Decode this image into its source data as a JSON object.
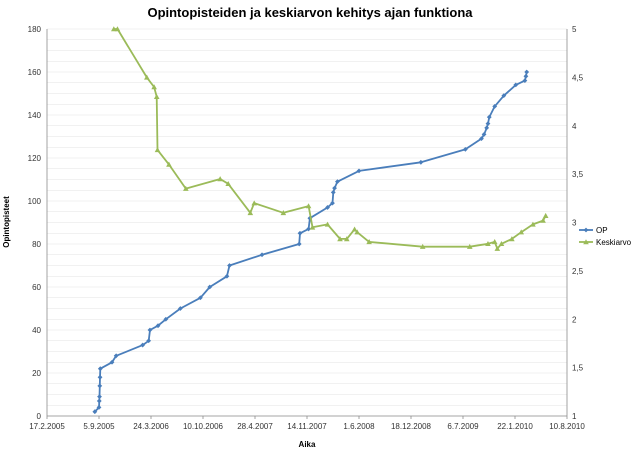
{
  "chart_data": {
    "type": "line",
    "title": "Opintopisteiden ja keskiarvon kehitys ajan funktiona",
    "xlabel": "Aika",
    "ylabel": "Opintopisteet",
    "y2label": "",
    "x_tick_labels": [
      "17.2.2005",
      "5.9.2005",
      "24.3.2006",
      "10.10.2006",
      "28.4.2007",
      "14.11.2007",
      "1.6.2008",
      "18.12.2008",
      "6.7.2009",
      "22.1.2010",
      "10.8.2010"
    ],
    "xlim": [
      "2005-02-17",
      "2010-08-10"
    ],
    "ylim": [
      0,
      180
    ],
    "y_ticks": [
      0,
      20,
      40,
      60,
      80,
      100,
      120,
      140,
      160,
      180
    ],
    "y2lim": [
      1,
      5
    ],
    "y2_tick_labels": [
      "1",
      "1,5",
      "2",
      "2,5",
      "3",
      "3,5",
      "4",
      "4,5",
      "5"
    ],
    "grid": true,
    "legend_position": "right",
    "series": [
      {
        "name": "OP",
        "axis": "left",
        "color": "#4a7ebb",
        "marker": "diamond",
        "points": [
          [
            "2005-08-20",
            2
          ],
          [
            "2005-09-05",
            4
          ],
          [
            "2005-09-06",
            7
          ],
          [
            "2005-09-07",
            9
          ],
          [
            "2005-09-08",
            14
          ],
          [
            "2005-09-09",
            18
          ],
          [
            "2005-09-10",
            22
          ],
          [
            "2005-10-25",
            25
          ],
          [
            "2005-11-10",
            28
          ],
          [
            "2006-02-20",
            33
          ],
          [
            "2006-03-15",
            35
          ],
          [
            "2006-03-20",
            40
          ],
          [
            "2006-04-20",
            42
          ],
          [
            "2006-05-20",
            45
          ],
          [
            "2006-07-15",
            50
          ],
          [
            "2006-09-30",
            55
          ],
          [
            "2006-11-05",
            60
          ],
          [
            "2007-01-10",
            65
          ],
          [
            "2007-01-20",
            70
          ],
          [
            "2007-05-25",
            75
          ],
          [
            "2007-10-15",
            80
          ],
          [
            "2007-10-18",
            85
          ],
          [
            "2007-11-20",
            87
          ],
          [
            "2007-11-25",
            92
          ],
          [
            "2008-02-01",
            97
          ],
          [
            "2008-02-20",
            99
          ],
          [
            "2008-02-23",
            104
          ],
          [
            "2008-02-28",
            106
          ],
          [
            "2008-03-10",
            109
          ],
          [
            "2008-06-01",
            114
          ],
          [
            "2009-01-25",
            118
          ],
          [
            "2009-07-15",
            124
          ],
          [
            "2009-09-15",
            129
          ],
          [
            "2009-09-25",
            131
          ],
          [
            "2009-10-05",
            134
          ],
          [
            "2009-10-10",
            136
          ],
          [
            "2009-10-15",
            139
          ],
          [
            "2009-11-05",
            144
          ],
          [
            "2009-12-10",
            149
          ],
          [
            "2010-01-25",
            154
          ],
          [
            "2010-03-01",
            156
          ],
          [
            "2010-03-05",
            158
          ],
          [
            "2010-03-08",
            160
          ]
        ]
      },
      {
        "name": "Keskiarvo",
        "axis": "right",
        "color": "#9bbb59",
        "marker": "triangle",
        "points": [
          [
            "2005-11-01",
            5.0
          ],
          [
            "2005-11-15",
            5.0
          ],
          [
            "2006-03-08",
            4.5
          ],
          [
            "2006-04-05",
            4.4
          ],
          [
            "2006-04-15",
            4.3
          ],
          [
            "2006-04-18",
            3.75
          ],
          [
            "2006-06-01",
            3.6
          ],
          [
            "2006-08-05",
            3.35
          ],
          [
            "2006-12-15",
            3.45
          ],
          [
            "2007-01-15",
            3.4
          ],
          [
            "2007-04-10",
            3.1
          ],
          [
            "2007-04-25",
            3.2
          ],
          [
            "2007-08-15",
            3.1
          ],
          [
            "2007-11-20",
            3.17
          ],
          [
            "2007-12-05",
            2.95
          ],
          [
            "2008-02-01",
            2.98
          ],
          [
            "2008-03-20",
            2.83
          ],
          [
            "2008-04-15",
            2.83
          ],
          [
            "2008-05-15",
            2.93
          ],
          [
            "2008-05-25",
            2.9
          ],
          [
            "2008-07-10",
            2.8
          ],
          [
            "2009-02-01",
            2.75
          ],
          [
            "2009-08-01",
            2.75
          ],
          [
            "2009-10-10",
            2.78
          ],
          [
            "2009-11-05",
            2.8
          ],
          [
            "2009-11-15",
            2.73
          ],
          [
            "2009-12-01",
            2.78
          ],
          [
            "2010-01-10",
            2.83
          ],
          [
            "2010-02-15",
            2.9
          ],
          [
            "2010-04-01",
            2.98
          ],
          [
            "2010-05-10",
            3.02
          ],
          [
            "2010-05-20",
            3.07
          ]
        ]
      }
    ]
  }
}
